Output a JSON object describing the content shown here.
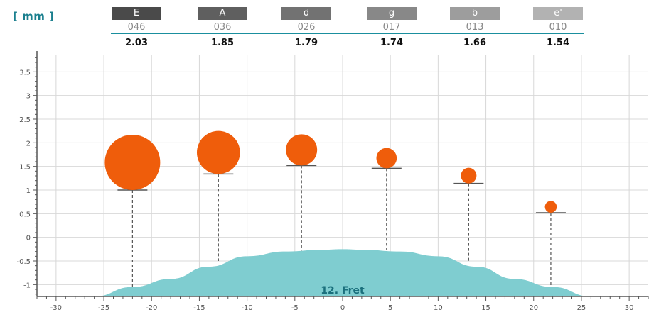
{
  "unit_label": "[ mm ]",
  "colors": {
    "string_fill": "#ef5d0b",
    "fretboard_fill": "#7fcdd0",
    "header_rule": "#1a8f9e",
    "grid": "#d8d8d8"
  },
  "chart_data": {
    "type": "scatter",
    "xlim": [
      -32,
      32
    ],
    "ylim": [
      -1.25,
      3.85
    ],
    "x_ticks": [
      "-30",
      "-25",
      "-20",
      "-15",
      "-10",
      "-5",
      "0",
      "5",
      "10",
      "15",
      "20",
      "25",
      "30"
    ],
    "x_tick_values": [
      -30,
      -25,
      -20,
      -15,
      -10,
      -5,
      0,
      5,
      10,
      15,
      20,
      25,
      30
    ],
    "y_ticks": [
      "-1",
      "-0.5",
      "0",
      "0.5",
      "1",
      "1.5",
      "2",
      "2.5",
      "3",
      "3.5"
    ],
    "y_tick_values": [
      -1,
      -0.5,
      0,
      0.5,
      1,
      1.5,
      2,
      2.5,
      3,
      3.5
    ],
    "grid": true,
    "fret_label": "12. Fret",
    "fretboard_profile": [
      [
        -26,
        -1.25
      ],
      [
        -22,
        -1.05
      ],
      [
        -18,
        -0.88
      ],
      [
        -14,
        -0.62
      ],
      [
        -10,
        -0.4
      ],
      [
        -6,
        -0.3
      ],
      [
        -2,
        -0.26
      ],
      [
        0,
        -0.25
      ],
      [
        2,
        -0.26
      ],
      [
        6,
        -0.3
      ],
      [
        10,
        -0.4
      ],
      [
        14,
        -0.62
      ],
      [
        18,
        -0.88
      ],
      [
        22,
        -1.05
      ],
      [
        26,
        -1.25
      ]
    ],
    "strings": [
      {
        "name": "E",
        "gauge": "046",
        "action": "2.03",
        "x": -22,
        "base_y": 1.0,
        "top_y": -1.05,
        "diameter": 1.17
      },
      {
        "name": "A",
        "gauge": "036",
        "action": "1.85",
        "x": -13,
        "base_y": 1.34,
        "top_y": -0.5,
        "diameter": 0.91
      },
      {
        "name": "d",
        "gauge": "026",
        "action": "1.79",
        "x": -4.3,
        "base_y": 1.52,
        "top_y": -0.28,
        "diameter": 0.66
      },
      {
        "name": "g",
        "gauge": "017",
        "action": "1.74",
        "x": 4.6,
        "base_y": 1.46,
        "top_y": -0.27,
        "diameter": 0.43
      },
      {
        "name": "b",
        "gauge": "013",
        "action": "1.66",
        "x": 13.2,
        "base_y": 1.14,
        "top_y": -0.52,
        "diameter": 0.33
      },
      {
        "name": "e'",
        "gauge": "010",
        "action": "1.54",
        "x": 21.8,
        "base_y": 0.52,
        "top_y": -1.03,
        "diameter": 0.25
      }
    ]
  }
}
